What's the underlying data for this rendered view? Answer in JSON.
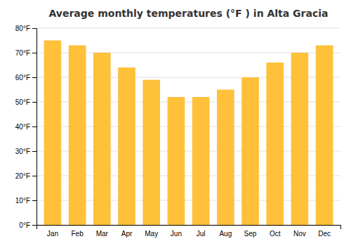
{
  "chart_data": {
    "type": "bar",
    "title": "Average monthly temperatures (°F ) in Alta Gracia",
    "categories": [
      "Jan",
      "Feb",
      "Mar",
      "Apr",
      "May",
      "Jun",
      "Jul",
      "Aug",
      "Sep",
      "Oct",
      "Nov",
      "Dec"
    ],
    "values": [
      75,
      73,
      70,
      64,
      59,
      52,
      52,
      55,
      60,
      66,
      70,
      73
    ],
    "color": "#FFC03A",
    "ylim": [
      0,
      80
    ],
    "yticks": [
      {
        "value": 0,
        "label": "0°F"
      },
      {
        "value": 10,
        "label": "10°F"
      },
      {
        "value": 20,
        "label": "20°F"
      },
      {
        "value": 30,
        "label": "30°F"
      },
      {
        "value": 40,
        "label": "40°F"
      },
      {
        "value": 50,
        "label": "50°F"
      },
      {
        "value": 60,
        "label": "60°F"
      },
      {
        "value": 70,
        "label": "70°F"
      },
      {
        "value": 80,
        "label": "80°F"
      }
    ],
    "grid": true
  }
}
